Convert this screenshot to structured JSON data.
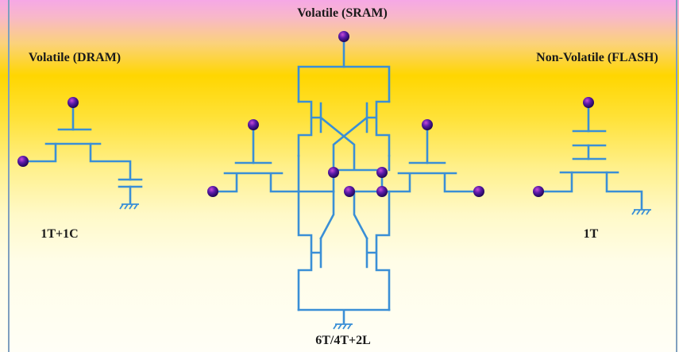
{
  "labels": {
    "sram_title": "Volatile (SRAM)",
    "dram_title": "Volatile (DRAM)",
    "flash_title": "Non-Volatile (FLASH)",
    "dram_caption": "1T+1C",
    "flash_caption": "1T",
    "sram_caption": "6T/4T+2L"
  },
  "colors": {
    "wire": "#3a8fd6",
    "node_fill": "#2a0a6e",
    "node_highlight": "#c64ad6",
    "background_top": "#f6a8e6",
    "background_mid": "#ffd600",
    "background_bottom": "#fffef6"
  }
}
